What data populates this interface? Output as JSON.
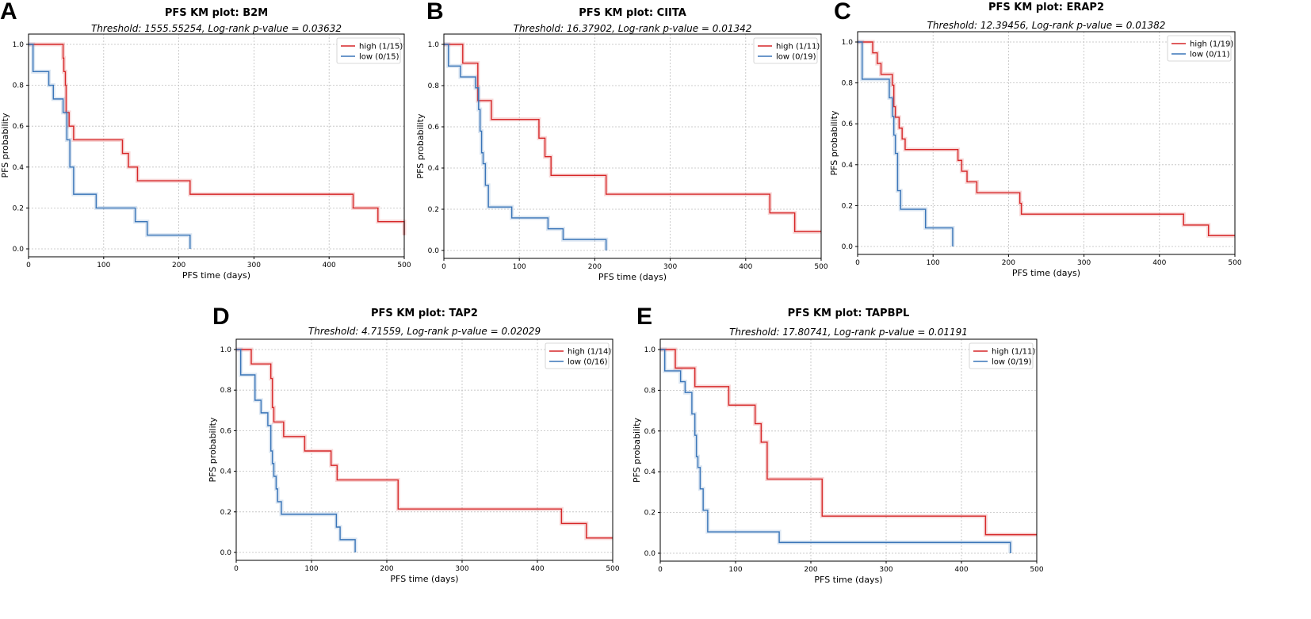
{
  "figure": {
    "panels": [
      "A",
      "B",
      "C",
      "D",
      "E"
    ]
  },
  "colors": {
    "high": "#d62728",
    "low": "#3a75b8",
    "grid": "#bfbfbf"
  },
  "chart_data": [
    {
      "panel": "A",
      "type": "line",
      "subtype": "kaplan-meier",
      "title": "PFS KM plot: B2M",
      "subtitle": "Threshold: 1555.55254, Log-rank p-value = 0.03632",
      "xlabel": "PFS time (days)",
      "ylabel": "PFS probability",
      "xlim": [
        0,
        500
      ],
      "ylim": [
        0,
        1
      ],
      "xticks": [
        0,
        100,
        200,
        300,
        400,
        500
      ],
      "yticks": [
        0.0,
        0.2,
        0.4,
        0.6,
        0.8,
        1.0
      ],
      "legend": "top-right",
      "series": [
        {
          "name": "high (1/15)",
          "group": "high",
          "x": [
            0,
            46,
            47,
            49,
            50,
            54,
            60,
            125,
            133,
            145,
            215,
            432,
            465,
            500
          ],
          "y": [
            1.0,
            0.933,
            0.867,
            0.8,
            0.667,
            0.6,
            0.533,
            0.467,
            0.4,
            0.333,
            0.267,
            0.2,
            0.133,
            0.067
          ]
        },
        {
          "name": "low (0/15)",
          "group": "low",
          "x": [
            0,
            6,
            27,
            33,
            46,
            51,
            55,
            60,
            90,
            142,
            158,
            215
          ],
          "y": [
            1.0,
            0.867,
            0.8,
            0.733,
            0.667,
            0.533,
            0.4,
            0.267,
            0.2,
            0.133,
            0.067,
            0.0
          ]
        }
      ]
    },
    {
      "panel": "B",
      "type": "line",
      "subtype": "kaplan-meier",
      "title": "PFS KM plot: CIITA",
      "subtitle": "Threshold: 16.37902, Log-rank p-value = 0.01342",
      "xlabel": "PFS time (days)",
      "ylabel": "PFS probability",
      "xlim": [
        0,
        500
      ],
      "ylim": [
        0,
        1
      ],
      "xticks": [
        0,
        100,
        200,
        300,
        400,
        500
      ],
      "yticks": [
        0.0,
        0.2,
        0.4,
        0.6,
        0.8,
        1.0
      ],
      "legend": "top-right",
      "series": [
        {
          "name": "high (1/11)",
          "group": "high",
          "x": [
            0,
            25,
            45,
            63,
            126,
            134,
            142,
            215,
            432,
            465,
            500
          ],
          "y": [
            1.0,
            0.909,
            0.727,
            0.636,
            0.545,
            0.455,
            0.364,
            0.273,
            0.182,
            0.091,
            0.091
          ]
        },
        {
          "name": "low (0/19)",
          "group": "low",
          "x": [
            0,
            6,
            22,
            42,
            46,
            48,
            50,
            52,
            55,
            59,
            90,
            138,
            158,
            215
          ],
          "y": [
            1.0,
            0.895,
            0.842,
            0.789,
            0.684,
            0.579,
            0.474,
            0.421,
            0.316,
            0.211,
            0.158,
            0.105,
            0.053,
            0.0
          ]
        }
      ]
    },
    {
      "panel": "C",
      "type": "line",
      "subtype": "kaplan-meier",
      "title": "PFS KM plot: ERAP2",
      "subtitle": "Threshold: 12.39456, Log-rank p-value = 0.01382",
      "xlabel": "PFS time (days)",
      "ylabel": "PFS probability",
      "xlim": [
        0,
        500
      ],
      "ylim": [
        0,
        1
      ],
      "xticks": [
        0,
        100,
        200,
        300,
        400,
        500
      ],
      "yticks": [
        0.0,
        0.2,
        0.4,
        0.6,
        0.8,
        1.0
      ],
      "legend": "top-right",
      "series": [
        {
          "name": "high (1/19)",
          "group": "high",
          "x": [
            0,
            20,
            26,
            31,
            46,
            48,
            50,
            55,
            59,
            63,
            133,
            138,
            145,
            158,
            215,
            217,
            432,
            465,
            500
          ],
          "y": [
            1.0,
            0.947,
            0.895,
            0.842,
            0.789,
            0.684,
            0.632,
            0.579,
            0.526,
            0.474,
            0.421,
            0.368,
            0.316,
            0.263,
            0.211,
            0.158,
            0.105,
            0.053,
            0.053
          ]
        },
        {
          "name": "low (0/11)",
          "group": "low",
          "x": [
            0,
            6,
            42,
            46,
            48,
            50,
            53,
            57,
            90,
            126
          ],
          "y": [
            1.0,
            0.818,
            0.727,
            0.636,
            0.545,
            0.455,
            0.273,
            0.182,
            0.091,
            0.0
          ]
        }
      ]
    },
    {
      "panel": "D",
      "type": "line",
      "subtype": "kaplan-meier",
      "title": "PFS KM plot: TAP2",
      "subtitle": "Threshold: 4.71559, Log-rank p-value = 0.02029",
      "xlabel": "PFS time (days)",
      "ylabel": "PFS probability",
      "xlim": [
        0,
        500
      ],
      "ylim": [
        0,
        1
      ],
      "xticks": [
        0,
        100,
        200,
        300,
        400,
        500
      ],
      "yticks": [
        0.0,
        0.2,
        0.4,
        0.6,
        0.8,
        1.0
      ],
      "legend": "top-right",
      "series": [
        {
          "name": "high (1/14)",
          "group": "high",
          "x": [
            0,
            20,
            46,
            48,
            50,
            63,
            91,
            126,
            134,
            215,
            432,
            465,
            500
          ],
          "y": [
            1.0,
            0.929,
            0.857,
            0.714,
            0.643,
            0.571,
            0.5,
            0.429,
            0.357,
            0.214,
            0.143,
            0.071,
            0.071
          ]
        },
        {
          "name": "low (0/16)",
          "group": "low",
          "x": [
            0,
            6,
            25,
            33,
            42,
            46,
            48,
            50,
            53,
            55,
            60,
            133,
            138,
            158
          ],
          "y": [
            1.0,
            0.875,
            0.75,
            0.688,
            0.625,
            0.5,
            0.438,
            0.375,
            0.313,
            0.25,
            0.188,
            0.125,
            0.063,
            0.0
          ]
        }
      ]
    },
    {
      "panel": "E",
      "type": "line",
      "subtype": "kaplan-meier",
      "title": "PFS KM plot: TAPBPL",
      "subtitle": "Threshold: 17.80741, Log-rank p-value = 0.01191",
      "xlabel": "PFS time (days)",
      "ylabel": "PFS probability",
      "xlim": [
        0,
        500
      ],
      "ylim": [
        0,
        1
      ],
      "xticks": [
        0,
        100,
        200,
        300,
        400,
        500
      ],
      "yticks": [
        0.0,
        0.2,
        0.4,
        0.6,
        0.8,
        1.0
      ],
      "legend": "top-right",
      "series": [
        {
          "name": "high (1/11)",
          "group": "high",
          "x": [
            0,
            20,
            46,
            91,
            126,
            134,
            142,
            215,
            432,
            500
          ],
          "y": [
            1.0,
            0.909,
            0.818,
            0.727,
            0.636,
            0.545,
            0.364,
            0.182,
            0.091,
            0.091
          ]
        },
        {
          "name": "low (0/19)",
          "group": "low",
          "x": [
            0,
            6,
            27,
            33,
            42,
            46,
            48,
            50,
            53,
            57,
            63,
            158,
            465
          ],
          "y": [
            1.0,
            0.895,
            0.842,
            0.789,
            0.684,
            0.579,
            0.474,
            0.421,
            0.316,
            0.211,
            0.105,
            0.053,
            0.0
          ]
        }
      ]
    }
  ]
}
